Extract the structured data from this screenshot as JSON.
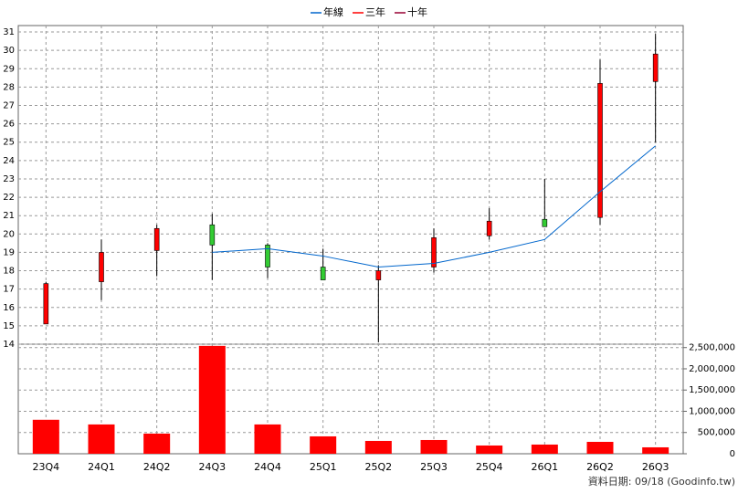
{
  "chart_data": [
    {
      "type": "candlestick",
      "categories": [
        "23Q4",
        "24Q1",
        "24Q2",
        "24Q3",
        "24Q4",
        "25Q1",
        "25Q2",
        "25Q3",
        "25Q4",
        "26Q1",
        "26Q2",
        "26Q3"
      ],
      "open": [
        15.1,
        17.4,
        19.1,
        20.5,
        19.4,
        18.2,
        17.5,
        18.2,
        19.9,
        20.8,
        20.9,
        28.3
      ],
      "high": [
        17.4,
        19.7,
        20.5,
        21.1,
        19.5,
        19.2,
        18.3,
        20.3,
        21.4,
        23.0,
        29.5,
        30.9
      ],
      "low": [
        15.1,
        16.4,
        17.7,
        17.5,
        17.6,
        17.5,
        14.1,
        17.9,
        19.7,
        20.4,
        20.5,
        25.0
      ],
      "close": [
        17.3,
        19.0,
        20.3,
        19.4,
        18.2,
        17.5,
        18.0,
        19.8,
        20.7,
        20.4,
        28.2,
        29.8
      ],
      "up_color": "#ff0000",
      "down_color": "#33cc33",
      "series": [
        {
          "name": "年線",
          "color": "#0066cc",
          "values": [
            null,
            null,
            null,
            19.0,
            19.2,
            18.8,
            18.2,
            18.4,
            19.0,
            19.7,
            22.3,
            24.8
          ]
        },
        {
          "name": "三年",
          "color": "#ff0000",
          "values": [
            null,
            null,
            null,
            null,
            null,
            null,
            null,
            null,
            null,
            null,
            null,
            null
          ]
        },
        {
          "name": "十年",
          "color": "#990033",
          "values": [
            null,
            null,
            null,
            null,
            null,
            null,
            null,
            null,
            null,
            null,
            null,
            null
          ]
        }
      ],
      "ylim": [
        14,
        31.35
      ],
      "yticks": [
        14,
        15,
        16,
        17,
        18,
        19,
        20,
        21,
        22,
        23,
        24,
        25,
        26,
        27,
        28,
        29,
        30,
        31
      ],
      "grid": true
    },
    {
      "type": "bar",
      "values": [
        800000,
        690000,
        474000,
        2540000,
        690000,
        409000,
        302000,
        323000,
        194000,
        216000,
        280000,
        151000
      ],
      "color": "#ff0000",
      "ylim": [
        0,
        2580000
      ],
      "yticks": [
        0,
        {
          "value": 500000,
          "label": "500,000"
        },
        {
          "value": 1000000,
          "label": "1,000,000"
        },
        {
          "value": 1500000,
          "label": "1,500,000"
        },
        {
          "value": 2000000,
          "label": "2,000,000"
        },
        {
          "value": 2500000,
          "label": "2,500,000"
        }
      ],
      "grid": true,
      "footnote": "資料日期: 09/18  (Goodinfo.tw)"
    }
  ]
}
